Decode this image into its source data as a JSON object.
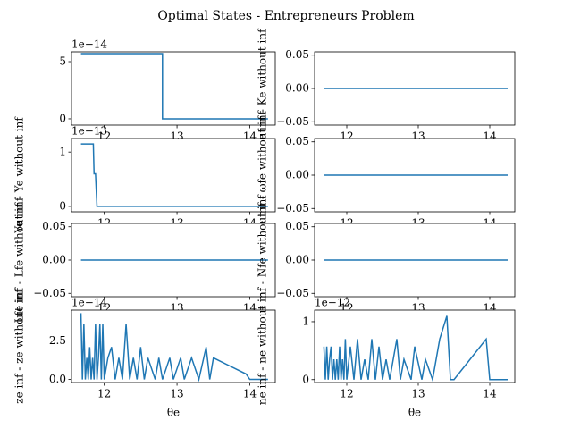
{
  "title": "Optimal States - Entrepreneurs Problem",
  "chart_data": [
    {
      "type": "line",
      "offset_text": "1e−14",
      "color": "#1f77b4",
      "x": [
        11.68,
        12.8,
        12.8,
        14.25
      ],
      "values": [
        5.7,
        5.7,
        0,
        0
      ],
      "xlim": [
        11.55,
        14.35
      ],
      "xticks": [
        12,
        13,
        14
      ],
      "ylim": [
        -0.55,
        5.86
      ],
      "yticks": [
        0,
        5
      ]
    },
    {
      "type": "line",
      "ylabel": "Ke inf - Ke without inf",
      "color": "#1f77b4",
      "x": [
        11.68,
        14.25
      ],
      "values": [
        0,
        0
      ],
      "xlim": [
        11.55,
        14.35
      ],
      "xticks": [
        12,
        13,
        14
      ],
      "ylim": [
        -0.055,
        0.055
      ],
      "yticks": [
        {
          "value": -0.05,
          "label": "−0.05"
        },
        {
          "value": 0,
          "label": "0.00"
        },
        {
          "value": 0.05,
          "label": "0.05"
        }
      ]
    },
    {
      "type": "line",
      "ylabel": "Ye inf - Ye without inf",
      "offset_text": "1e−13",
      "color": "#1f77b4",
      "x": [
        11.68,
        11.85,
        11.86,
        11.88,
        11.9,
        14.25
      ],
      "values": [
        1.15,
        1.15,
        0.6,
        0.6,
        0,
        0
      ],
      "xlim": [
        11.55,
        14.35
      ],
      "xticks": [
        12,
        13,
        14
      ],
      "ylim": [
        -0.1,
        1.25
      ],
      "yticks": [
        0,
        1
      ]
    },
    {
      "type": "line",
      "ylabel": "ωfe inf - ωfe without inf",
      "color": "#1f77b4",
      "x": [
        11.68,
        14.25
      ],
      "values": [
        0,
        0
      ],
      "xlim": [
        11.55,
        14.35
      ],
      "xticks": [
        12,
        13,
        14
      ],
      "ylim": [
        -0.055,
        0.055
      ],
      "yticks": [
        {
          "value": -0.05,
          "label": "−0.05"
        },
        {
          "value": 0,
          "label": "0.00"
        },
        {
          "value": 0.05,
          "label": "0.05"
        }
      ]
    },
    {
      "type": "line",
      "ylabel": "Lfe inf - Lfe without inf",
      "color": "#1f77b4",
      "x": [
        11.68,
        14.25
      ],
      "values": [
        0,
        0
      ],
      "xlim": [
        11.55,
        14.35
      ],
      "xticks": [
        12,
        13,
        14
      ],
      "ylim": [
        -0.055,
        0.055
      ],
      "yticks": [
        {
          "value": -0.05,
          "label": "−0.05"
        },
        {
          "value": 0,
          "label": "0.00"
        },
        {
          "value": 0.05,
          "label": "0.05"
        }
      ]
    },
    {
      "type": "line",
      "ylabel": "Nfe inf - Nfe without inf",
      "color": "#1f77b4",
      "x": [
        11.68,
        14.25
      ],
      "values": [
        0,
        0
      ],
      "xlim": [
        11.55,
        14.35
      ],
      "xticks": [
        12,
        13,
        14
      ],
      "ylim": [
        -0.055,
        0.055
      ],
      "yticks": [
        {
          "value": -0.05,
          "label": "−0.05"
        },
        {
          "value": 0,
          "label": "0.00"
        },
        {
          "value": 0.05,
          "label": "0.05"
        }
      ]
    },
    {
      "type": "line",
      "ylabel": "ze inf - ze without inf",
      "xlabel": "θe",
      "offset_text": "1e−14",
      "color": "#1f77b4",
      "x": [
        11.68,
        11.7,
        11.72,
        11.74,
        11.76,
        11.78,
        11.8,
        11.82,
        11.84,
        11.86,
        11.88,
        11.9,
        11.92,
        11.94,
        11.96,
        11.98,
        12.0,
        12.05,
        12.1,
        12.15,
        12.2,
        12.25,
        12.3,
        12.35,
        12.4,
        12.45,
        12.5,
        12.55,
        12.6,
        12.7,
        12.75,
        12.8,
        12.9,
        12.95,
        13.05,
        13.1,
        13.2,
        13.3,
        13.4,
        13.45,
        13.5,
        13.95,
        14.0,
        14.25
      ],
      "values": [
        4.3,
        0,
        3.6,
        0,
        1.4,
        0,
        2.1,
        0,
        1.4,
        0,
        3.6,
        0,
        1.4,
        3.6,
        0,
        3.6,
        0,
        1.4,
        2.1,
        0,
        1.4,
        0,
        3.6,
        0,
        1.4,
        0,
        2.1,
        0,
        1.4,
        0,
        1.4,
        0,
        1.4,
        0,
        1.4,
        0,
        1.4,
        0,
        2.1,
        0,
        1.4,
        0.35,
        0,
        0
      ],
      "xlim": [
        11.55,
        14.35
      ],
      "xticks": [
        12,
        13,
        14
      ],
      "ylim": [
        -0.2,
        4.5
      ],
      "yticks": [
        {
          "value": 0,
          "label": "0.0"
        },
        2.5
      ]
    },
    {
      "type": "line",
      "ylabel": "ne inf - ne without inf",
      "xlabel": "θe",
      "offset_text": "1e−12",
      "color": "#1f77b4",
      "x": [
        11.68,
        11.7,
        11.72,
        11.74,
        11.76,
        11.78,
        11.8,
        11.82,
        11.84,
        11.86,
        11.88,
        11.9,
        11.92,
        11.94,
        11.96,
        11.98,
        12.0,
        12.05,
        12.1,
        12.15,
        12.2,
        12.25,
        12.3,
        12.35,
        12.4,
        12.45,
        12.5,
        12.55,
        12.6,
        12.7,
        12.75,
        12.8,
        12.9,
        12.95,
        13.05,
        13.1,
        13.2,
        13.3,
        13.4,
        13.45,
        13.5,
        13.95,
        14.0,
        14.25
      ],
      "values": [
        0.57,
        0,
        0.57,
        0,
        0.35,
        0.57,
        0,
        0.35,
        0,
        0.35,
        0,
        0.57,
        0,
        0.35,
        0,
        0.7,
        0,
        0.57,
        0,
        0.7,
        0,
        0.35,
        0,
        0.7,
        0,
        0.57,
        0,
        0.35,
        0,
        0.7,
        0,
        0.35,
        0,
        0.57,
        0,
        0.35,
        0,
        0.7,
        1.1,
        0,
        0,
        0.7,
        0,
        0
      ],
      "xlim": [
        11.55,
        14.35
      ],
      "xticks": [
        12,
        13,
        14
      ],
      "ylim": [
        -0.05,
        1.2
      ],
      "yticks": [
        0,
        1
      ]
    }
  ]
}
